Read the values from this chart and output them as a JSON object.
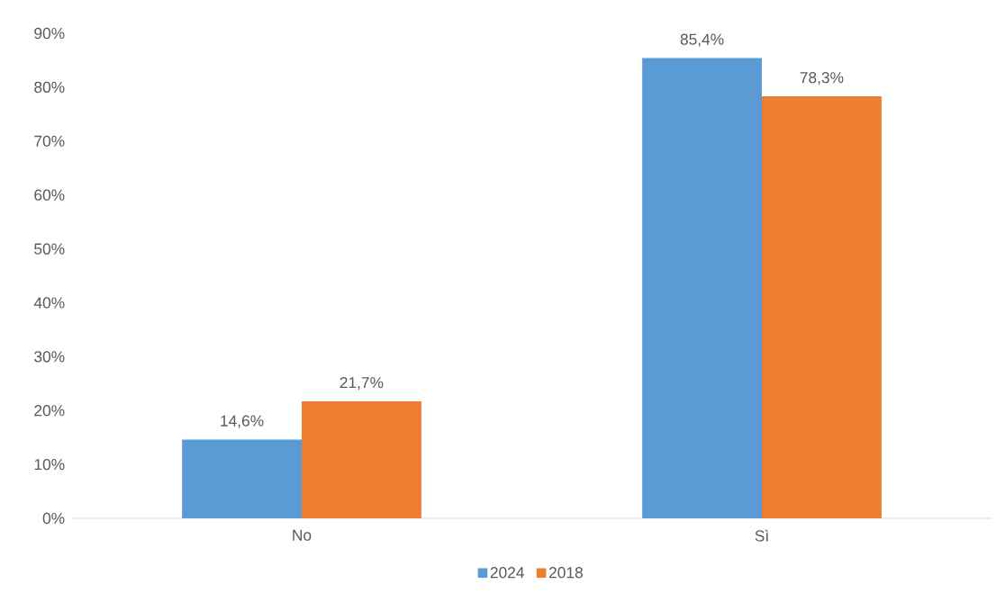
{
  "chart_data": {
    "type": "bar",
    "categories": [
      "No",
      "Sì"
    ],
    "series": [
      {
        "name": "2024",
        "color": "#5b9bd5",
        "values": [
          14.6,
          85.4
        ],
        "value_labels": [
          "14,6%",
          "85,4%"
        ]
      },
      {
        "name": "2018",
        "color": "#ed7d31",
        "values": [
          21.7,
          78.3
        ],
        "value_labels": [
          "21,7%",
          "78,3%"
        ]
      }
    ],
    "ylim": [
      0,
      90
    ],
    "yticks": [
      {
        "value": 0,
        "label": "0%"
      },
      {
        "value": 10,
        "label": "10%"
      },
      {
        "value": 20,
        "label": "20%"
      },
      {
        "value": 30,
        "label": "30%"
      },
      {
        "value": 40,
        "label": "40%"
      },
      {
        "value": 50,
        "label": "50%"
      },
      {
        "value": 60,
        "label": "60%"
      },
      {
        "value": 70,
        "label": "70%"
      },
      {
        "value": 80,
        "label": "80%"
      },
      {
        "value": 90,
        "label": "90%"
      }
    ],
    "grid": false,
    "legend": "bottom"
  }
}
